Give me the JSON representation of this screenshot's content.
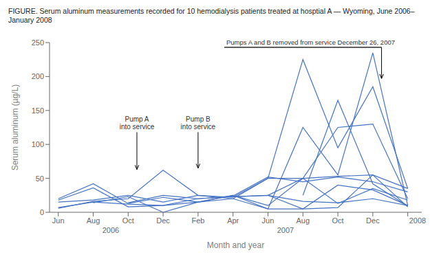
{
  "chart_data": {
    "type": "line",
    "title": "FIGURE. Serum aluminum measurements recorded for 10 hemodialysis patients treated at hosptial A — Wyoming, June 2006–\nJanuary 2008",
    "x_label": "Month and year",
    "y_label": "Serum aluminum (µg/L)",
    "color": "#4472C4",
    "grid": false,
    "xlim": [
      -0.5,
      20.8
    ],
    "xticks": [
      {
        "value": 0,
        "label": "Jun"
      },
      {
        "value": 2,
        "label": "Aug"
      },
      {
        "value": 4,
        "label": "Oct"
      },
      {
        "value": 6,
        "label": "Dec"
      },
      {
        "value": 8,
        "label": "Feb"
      },
      {
        "value": 10,
        "label": "Apr"
      },
      {
        "value": 12,
        "label": "Jun"
      },
      {
        "value": 14,
        "label": "Aug"
      },
      {
        "value": 16,
        "label": "Oct"
      },
      {
        "value": 18,
        "label": "Dec"
      },
      {
        "value": 20,
        "label": null
      }
    ],
    "ylim": [
      0,
      250
    ],
    "yticks": [
      0,
      50,
      100,
      150,
      200,
      250
    ],
    "series": [
      {
        "x": [
          0,
          2,
          4,
          6,
          8,
          10,
          12,
          14,
          16,
          18,
          20
        ],
        "values": [
          6,
          16,
          20,
          62,
          25,
          20,
          5,
          125,
          55,
          235,
          10
        ]
      },
      {
        "x": [
          0,
          2,
          4,
          6,
          8,
          10,
          12,
          14,
          16,
          18,
          20
        ],
        "values": [
          7,
          15,
          12,
          10,
          15,
          20,
          50,
          225,
          95,
          185,
          35
        ]
      },
      {
        "x": [
          0,
          2,
          4,
          6,
          8,
          10,
          12,
          14,
          16,
          18,
          20
        ],
        "values": [
          15,
          18,
          25,
          15,
          25,
          22,
          50,
          50,
          53,
          55,
          35
        ]
      },
      {
        "x": [
          0,
          2,
          4,
          6,
          8,
          10,
          12,
          14,
          16,
          18,
          20
        ],
        "values": [
          18,
          36,
          8,
          10,
          20,
          24,
          52,
          45,
          52,
          45,
          30
        ]
      },
      {
        "x": [
          0,
          2,
          4,
          6,
          8,
          10,
          12,
          14,
          16,
          18,
          20
        ],
        "values": [
          20,
          42,
          13,
          22,
          15,
          25,
          10,
          50,
          13,
          35,
          18
        ]
      },
      {
        "x": [
          2,
          4,
          6,
          8,
          10,
          12,
          14,
          16,
          18,
          20
        ],
        "values": [
          14,
          23,
          0,
          15,
          25,
          5,
          5,
          40,
          33,
          10
        ]
      },
      {
        "x": [
          4,
          6,
          8,
          10,
          12,
          14,
          16,
          18,
          20
        ],
        "values": [
          14,
          25,
          20,
          23,
          25,
          16,
          14,
          20,
          10
        ]
      },
      {
        "x": [
          10,
          12,
          14,
          16,
          18,
          20
        ],
        "values": [
          23,
          25,
          50,
          125,
          130,
          20
        ]
      },
      {
        "x": [
          12,
          14,
          16,
          18,
          20
        ],
        "values": [
          25,
          5,
          7,
          55,
          8
        ]
      },
      {
        "x": [
          14,
          16,
          18,
          20
        ],
        "values": [
          25,
          165,
          42,
          9
        ]
      }
    ],
    "annotations": [
      {
        "type": "arrow",
        "text": "Pump A\ninto service",
        "x": 4.5,
        "y_from": 118,
        "y_to": 63
      },
      {
        "type": "arrow",
        "text": "Pump B\ninto service",
        "x": 8.0,
        "y_from": 118,
        "y_to": 65
      },
      {
        "type": "bracket_arrow",
        "text": "Pumps A and B removed from service December 26, 2007",
        "x_start": 9.5,
        "x_end": 18.5,
        "y": 243,
        "y_to": 197
      },
      {
        "type": "axis_text",
        "text": "2006",
        "x": 3.0
      },
      {
        "type": "axis_text",
        "text": "2007",
        "x": 13.0
      },
      {
        "type": "axis_text",
        "text": "2008",
        "x": 20.0
      }
    ]
  }
}
